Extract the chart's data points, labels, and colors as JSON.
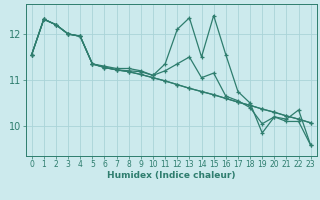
{
  "xlabel": "Humidex (Indice chaleur)",
  "ylabel": "",
  "bg_color": "#cceaed",
  "line_color": "#2e7d6e",
  "grid_color": "#aad4d8",
  "xlim": [
    -0.5,
    23.5
  ],
  "ylim": [
    9.35,
    12.65
  ],
  "xticks": [
    0,
    1,
    2,
    3,
    4,
    5,
    6,
    7,
    8,
    9,
    10,
    11,
    12,
    13,
    14,
    15,
    16,
    17,
    18,
    19,
    20,
    21,
    22,
    23
  ],
  "yticks": [
    10,
    11,
    12
  ],
  "series": [
    [
      11.55,
      12.32,
      12.2,
      12.0,
      11.95,
      11.35,
      11.3,
      11.25,
      11.25,
      11.2,
      11.1,
      11.35,
      12.1,
      12.35,
      11.5,
      12.4,
      11.55,
      10.75,
      10.5,
      9.85,
      10.2,
      10.15,
      10.35,
      9.58
    ],
    [
      11.55,
      12.32,
      12.2,
      12.0,
      11.95,
      11.35,
      11.28,
      11.22,
      11.2,
      11.18,
      11.1,
      11.2,
      11.35,
      11.5,
      11.05,
      11.15,
      10.65,
      10.55,
      10.4,
      10.05,
      10.2,
      10.1,
      10.1,
      9.58
    ],
    [
      11.55,
      12.32,
      12.2,
      12.0,
      11.95,
      11.35,
      11.27,
      11.22,
      11.18,
      11.12,
      11.05,
      10.98,
      10.9,
      10.82,
      10.75,
      10.68,
      10.6,
      10.52,
      10.45,
      10.37,
      10.3,
      10.22,
      10.15,
      10.07
    ],
    [
      11.55,
      12.32,
      12.2,
      12.0,
      11.95,
      11.35,
      11.27,
      11.22,
      11.18,
      11.12,
      11.05,
      10.98,
      10.9,
      10.82,
      10.75,
      10.68,
      10.6,
      10.52,
      10.45,
      10.37,
      10.3,
      10.22,
      10.15,
      10.07
    ]
  ],
  "marker": "+",
  "marker_size": 3.0,
  "line_width": 0.9,
  "tick_fontsize": 5.5,
  "xlabel_fontsize": 6.5,
  "tick_color": "#2e7d6e"
}
